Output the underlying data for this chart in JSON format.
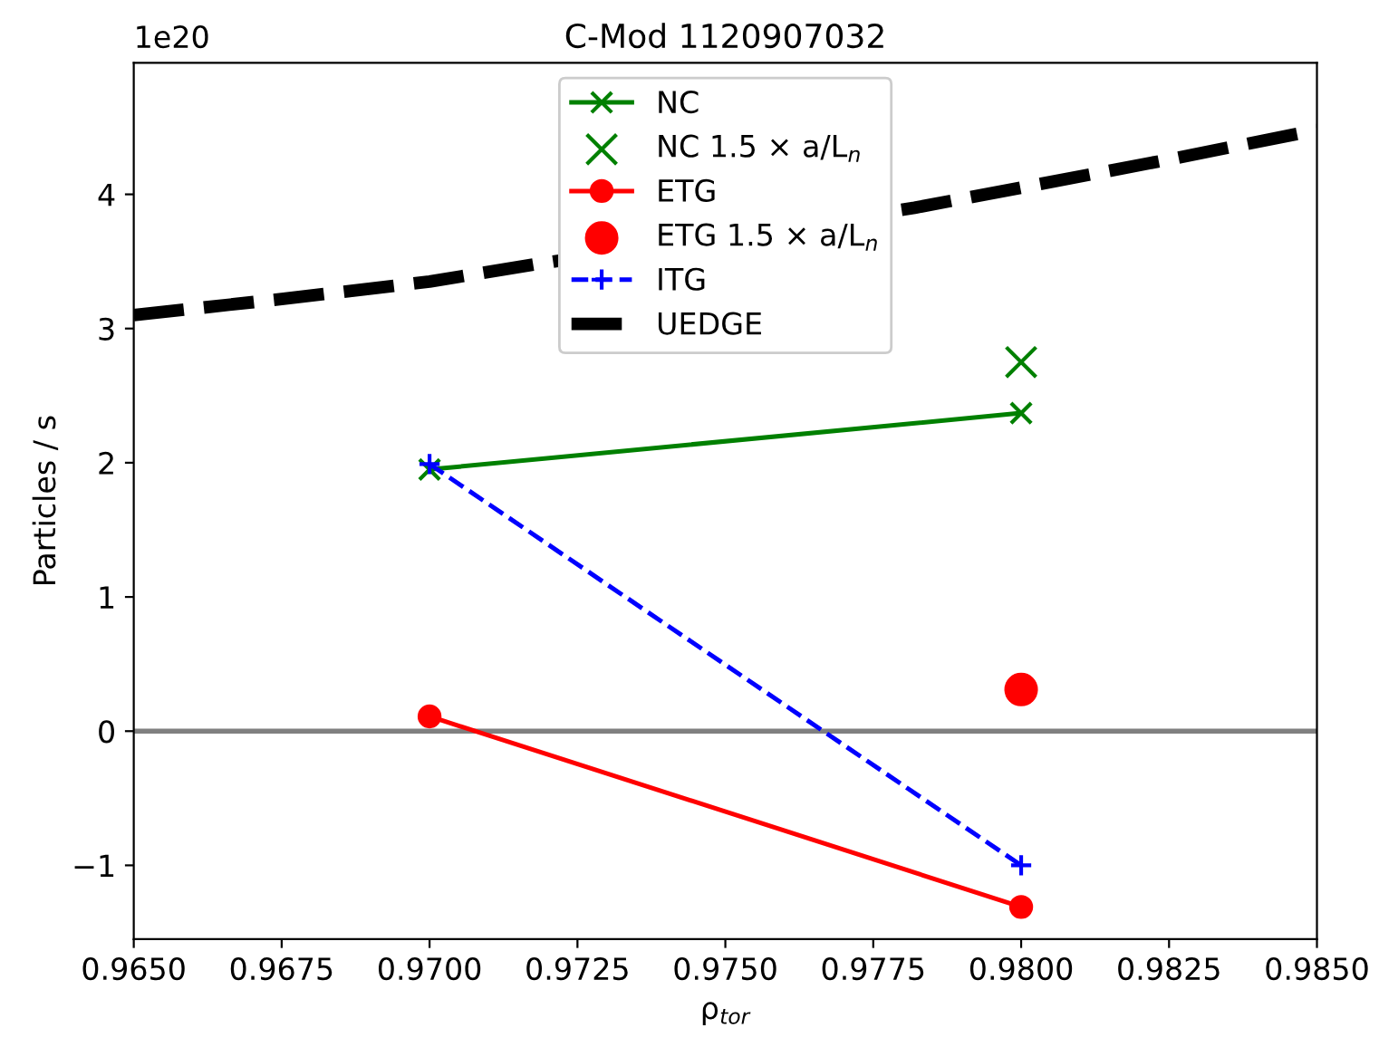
{
  "chart_data": {
    "type": "line",
    "title": "C-Mod 1120907032",
    "xlabel": "ρ$_{tor}$",
    "ylabel": "Particles / s",
    "annotations": [
      "1e20"
    ],
    "xlim": [
      0.965,
      0.985
    ],
    "xticks": [
      {
        "value": 0.965,
        "label": "0.9650"
      },
      {
        "value": 0.9675,
        "label": "0.9675"
      },
      {
        "value": 0.97,
        "label": "0.9700"
      },
      {
        "value": 0.9725,
        "label": "0.9725"
      },
      {
        "value": 0.975,
        "label": "0.9750"
      },
      {
        "value": 0.9775,
        "label": "0.9775"
      },
      {
        "value": 0.98,
        "label": "0.9800"
      },
      {
        "value": 0.9825,
        "label": "0.9825"
      },
      {
        "value": 0.985,
        "label": "0.9850"
      }
    ],
    "ylim": [
      -1.55,
      4.98
    ],
    "yticks": [
      {
        "value": -1,
        "label": "−1"
      },
      0,
      1,
      2,
      3,
      4
    ],
    "grid": false,
    "legend": "top center",
    "ref_lines": [
      {
        "axis": "y",
        "value": 0,
        "color": "#808080"
      }
    ],
    "series": [
      {
        "name": "NC",
        "color": "#008000",
        "marker": "cross",
        "line_style": "solid",
        "x": [
          0.97,
          0.98
        ],
        "values": [
          1.95,
          2.37
        ]
      },
      {
        "name": "NC 1.5 × a/L$_{n}$",
        "type": "scatter",
        "color": "#008000",
        "marker": "cross",
        "x": [
          0.98
        ],
        "values": [
          2.75
        ]
      },
      {
        "name": "ETG",
        "color": "#ff0000",
        "marker": "circle",
        "line_style": "solid",
        "x": [
          0.97,
          0.98
        ],
        "values": [
          0.11,
          -1.31
        ]
      },
      {
        "name": "ETG 1.5 × a/L$_{n}$",
        "type": "scatter",
        "color": "#ff0000",
        "marker": "circle",
        "x": [
          0.98
        ],
        "values": [
          0.31
        ]
      },
      {
        "name": "ITG",
        "color": "#0000ff",
        "marker": "plus",
        "line_style": "dashed",
        "x": [
          0.97,
          0.98
        ],
        "values": [
          1.99,
          -1.0
        ]
      },
      {
        "name": "UEDGE",
        "color": "#000000",
        "marker": "none",
        "line_style": "dashed",
        "x": [
          0.965,
          0.9675,
          0.97,
          0.9718,
          0.9782,
          0.98,
          0.9825,
          0.985
        ],
        "values": [
          3.1,
          3.22,
          3.35,
          3.48,
          3.9,
          4.05,
          4.26,
          4.48
        ]
      }
    ]
  }
}
